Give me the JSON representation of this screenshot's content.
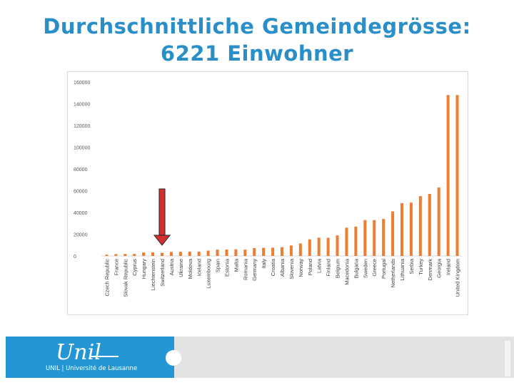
{
  "title": {
    "line1": "Durchschnittliche Gemeindegrösse:",
    "line2": "6221 Einwohner"
  },
  "chart_data": {
    "type": "bar",
    "title": "",
    "xlabel": "",
    "ylabel": "",
    "ylim": [
      0,
      160000
    ],
    "yticks": [
      0,
      20000,
      40000,
      60000,
      80000,
      100000,
      120000,
      140000,
      160000
    ],
    "categories": [
      "Czech Republic",
      "France",
      "Slovak Republic",
      "Cyprus",
      "Hungary",
      "Liechtenstein",
      "Switzerland",
      "Austria",
      "Ukraine",
      "Moldova",
      "Iceland",
      "Luxembourg",
      "Spain",
      "Estonia",
      "Malta",
      "Romania",
      "Germany",
      "Italy",
      "Croatia",
      "Albania",
      "Slovenia",
      "Norway",
      "Poland",
      "Latvia",
      "Finland",
      "Belgium",
      "Macedonia",
      "Bulgaria",
      "Sweden",
      "Greece",
      "Portugal",
      "Netherlands",
      "Lithuania",
      "Serbia",
      "Turkey",
      "Denmark",
      "Georgia",
      "Ireland",
      "United Kingdom"
    ],
    "values": [
      1200,
      1700,
      1800,
      1900,
      3200,
      3300,
      2900,
      3700,
      3800,
      3900,
      4000,
      4900,
      5800,
      5900,
      6100,
      5800,
      7200,
      7500,
      7600,
      8100,
      9600,
      11500,
      15300,
      16800,
      16700,
      18900,
      26000,
      27000,
      33000,
      33000,
      34000,
      41000,
      48500,
      49000,
      55000,
      57000,
      63000,
      148000,
      148000
    ],
    "series_color": "#ed7d31",
    "highlight": {
      "category": "Switzerland",
      "marker": "arrow",
      "color": "#d32f2f"
    }
  },
  "footer": {
    "logo_text": "Unil",
    "logo_sub": "UNIL | Université de Lausanne"
  }
}
